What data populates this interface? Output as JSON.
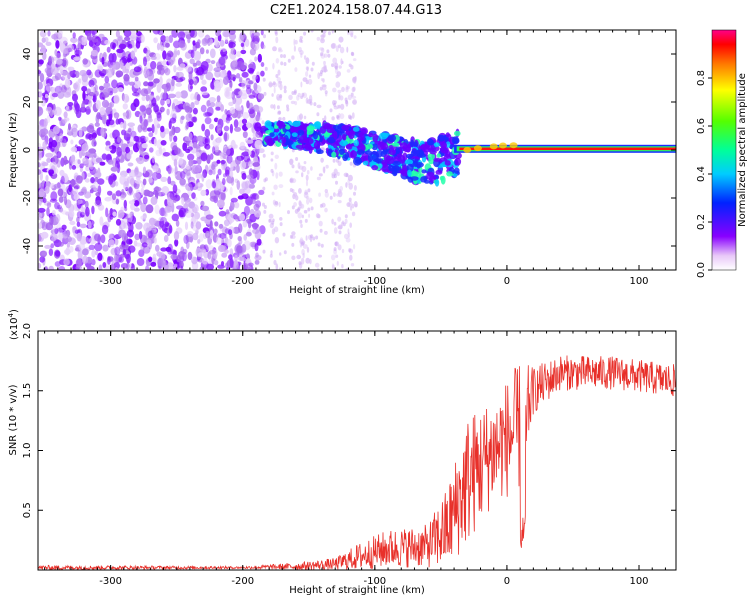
{
  "title": "C2E1.2024.158.07.44.G13",
  "chart_data": [
    {
      "type": "heatmap",
      "xlabel": "Height of straight line (km)",
      "ylabel": "Frequency (Hz)",
      "xlim": [
        -355,
        128
      ],
      "ylim": [
        -50,
        50
      ],
      "x_ticks": [
        -300,
        -200,
        -100,
        0,
        100
      ],
      "y_ticks": [
        -40,
        -20,
        0,
        20,
        40
      ],
      "colorbar": {
        "label": "Normalized spectral amplitude",
        "range": [
          0,
          1
        ],
        "ticks": [
          0.0,
          0.2,
          0.4,
          0.6,
          0.8
        ]
      },
      "regions": [
        {
          "description": "broadband noise",
          "x_range": [
            -355,
            -185
          ],
          "y_range": [
            -50,
            50
          ]
        },
        {
          "description": "sparse noise",
          "x_range": [
            -185,
            -115
          ],
          "y_range": [
            -50,
            50
          ]
        },
        {
          "description": "signal band",
          "x_start": -185,
          "x_end": 128,
          "trace": [
            [
              -185,
              7
            ],
            [
              -160,
              6
            ],
            [
              -140,
              5
            ],
            [
              -120,
              3
            ],
            [
              -100,
              0
            ],
            [
              -80,
              -3
            ],
            [
              -60,
              -6
            ],
            [
              -40,
              -2
            ],
            [
              -20,
              0
            ],
            [
              0,
              1
            ],
            [
              128,
              0
            ]
          ]
        }
      ]
    },
    {
      "type": "line",
      "xlabel": "Height of straight line (km)",
      "ylabel": "SNR (10 * v/v)",
      "multiplier_label": "(x10",
      "multiplier_exp": "4",
      "multiplier_close": ")",
      "xlim": [
        -355,
        128
      ],
      "ylim": [
        0,
        2.0
      ],
      "x_ticks": [
        -300,
        -200,
        -100,
        0,
        100
      ],
      "y_ticks": [
        0.5,
        1.0,
        1.5,
        2.0
      ],
      "color": "#e8302a",
      "envelope": [
        {
          "x": -355,
          "mean": 0.02,
          "spread": 0.02
        },
        {
          "x": -200,
          "mean": 0.02,
          "spread": 0.01
        },
        {
          "x": -160,
          "mean": 0.03,
          "spread": 0.03
        },
        {
          "x": -130,
          "mean": 0.05,
          "spread": 0.05
        },
        {
          "x": -110,
          "mean": 0.12,
          "spread": 0.12
        },
        {
          "x": -90,
          "mean": 0.18,
          "spread": 0.16
        },
        {
          "x": -60,
          "mean": 0.2,
          "spread": 0.18
        },
        {
          "x": -45,
          "mean": 0.35,
          "spread": 0.35
        },
        {
          "x": -30,
          "mean": 0.75,
          "spread": 0.55
        },
        {
          "x": -10,
          "mean": 1.0,
          "spread": 0.45
        },
        {
          "x": 10,
          "mean": 1.2,
          "spread": 0.55
        },
        {
          "x": 20,
          "mean": 1.5,
          "spread": 0.2
        },
        {
          "x": 40,
          "mean": 1.65,
          "spread": 0.15
        },
        {
          "x": 80,
          "mean": 1.65,
          "spread": 0.14
        },
        {
          "x": 128,
          "mean": 1.58,
          "spread": 0.14
        }
      ]
    }
  ]
}
